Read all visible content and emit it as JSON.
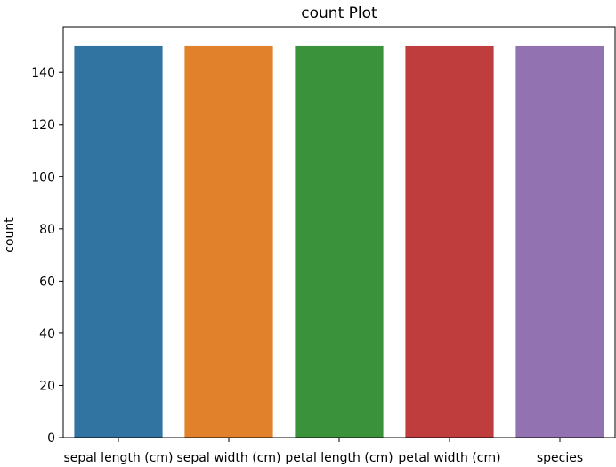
{
  "chart_data": {
    "type": "bar",
    "title": "count Plot",
    "xlabel": "",
    "ylabel": "count",
    "categories": [
      "sepal length (cm)",
      "sepal width (cm)",
      "petal length (cm)",
      "petal width (cm)",
      "species"
    ],
    "values": [
      150,
      150,
      150,
      150,
      150
    ],
    "colors": [
      "#3274a1",
      "#e1812c",
      "#3a923a",
      "#c03d3e",
      "#9372b2"
    ],
    "ylim": [
      0,
      157.5
    ],
    "yticks": [
      0,
      20,
      40,
      60,
      80,
      100,
      120,
      140
    ],
    "grid": false,
    "legend": "none"
  }
}
